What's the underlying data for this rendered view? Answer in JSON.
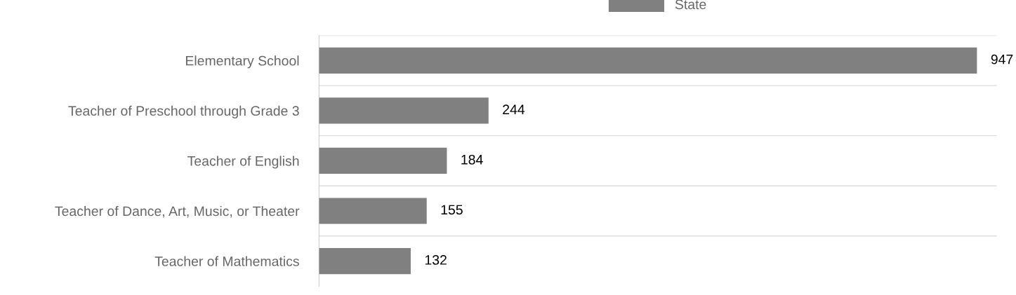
{
  "chart_data": {
    "type": "bar",
    "orientation": "horizontal",
    "categories": [
      "Elementary School",
      "Teacher of Preschool through Grade 3",
      "Teacher of English",
      "Teacher of Dance, Art, Music, or Theater",
      "Teacher of Mathematics"
    ],
    "series": [
      {
        "name": "State",
        "color": "#808080",
        "values": [
          947,
          244,
          184,
          155,
          132
        ]
      }
    ],
    "data_labels": true,
    "grid": "y",
    "legend": "top",
    "tick_labels": "y"
  }
}
